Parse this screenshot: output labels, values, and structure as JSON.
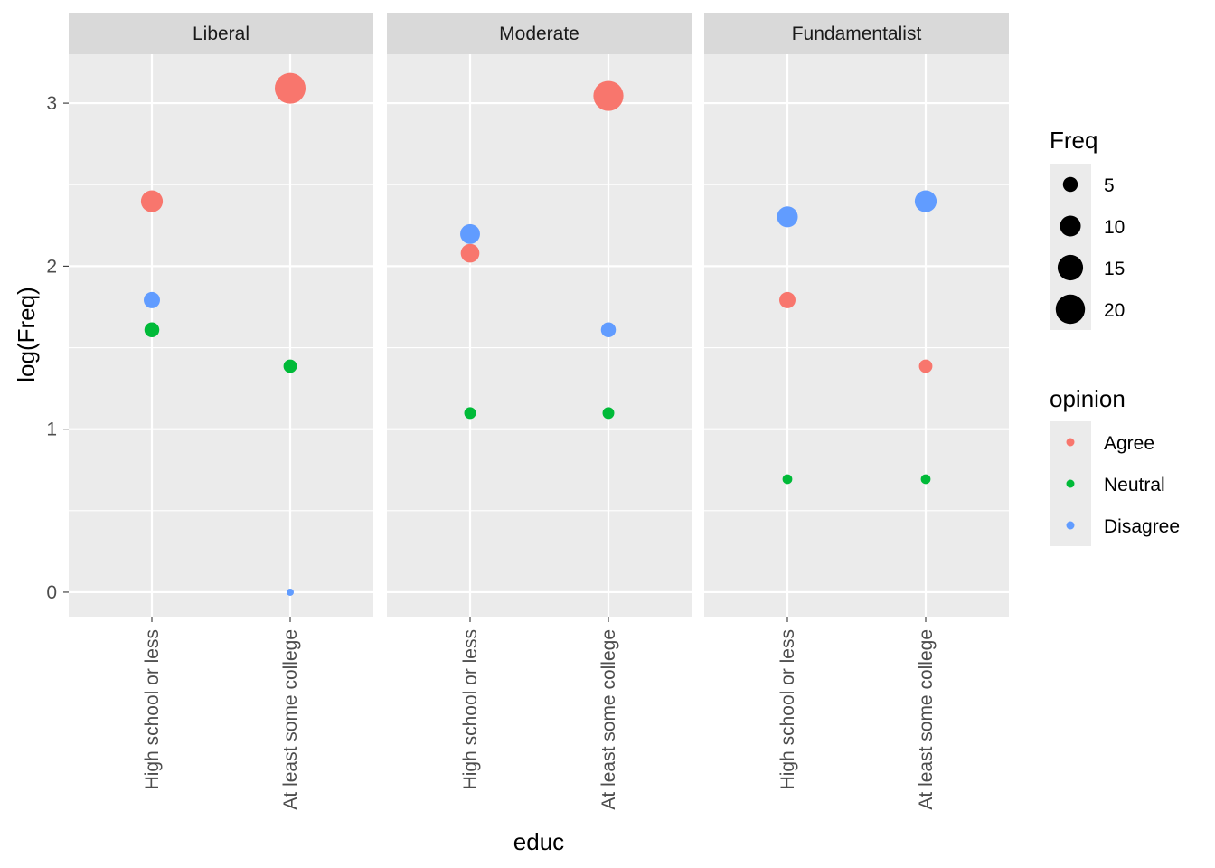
{
  "chart_data": {
    "type": "scatter",
    "facet_by": "religion",
    "panels": [
      "Liberal",
      "Moderate",
      "Fundamentalist"
    ],
    "categories": [
      "High school or less",
      "At least some college"
    ],
    "xlabel": "educ",
    "ylabel": "log(Freq)",
    "ylim": [
      -0.15,
      3.3
    ],
    "yticks": [
      0,
      1,
      2,
      3
    ],
    "grid": true,
    "size_legend": {
      "title": "Freq",
      "breaks": [
        5,
        10,
        15,
        20
      ],
      "labels": [
        "5",
        "10",
        "15",
        "20"
      ]
    },
    "color_legend": {
      "title": "opinion",
      "entries": [
        {
          "name": "Agree",
          "color": "#F8766D"
        },
        {
          "name": "Neutral",
          "color": "#00BA38"
        },
        {
          "name": "Disagree",
          "color": "#619CFF"
        }
      ]
    },
    "legend_position": "right",
    "points": [
      {
        "panel": "Liberal",
        "educ": "High school or less",
        "opinion": "Agree",
        "freq": 11
      },
      {
        "panel": "Liberal",
        "educ": "High school or less",
        "opinion": "Neutral",
        "freq": 5
      },
      {
        "panel": "Liberal",
        "educ": "High school or less",
        "opinion": "Disagree",
        "freq": 6
      },
      {
        "panel": "Liberal",
        "educ": "At least some college",
        "opinion": "Agree",
        "freq": 22
      },
      {
        "panel": "Liberal",
        "educ": "At least some college",
        "opinion": "Neutral",
        "freq": 4
      },
      {
        "panel": "Liberal",
        "educ": "At least some college",
        "opinion": "Disagree",
        "freq": 1
      },
      {
        "panel": "Moderate",
        "educ": "High school or less",
        "opinion": "Agree",
        "freq": 8
      },
      {
        "panel": "Moderate",
        "educ": "High school or less",
        "opinion": "Neutral",
        "freq": 3
      },
      {
        "panel": "Moderate",
        "educ": "High school or less",
        "opinion": "Disagree",
        "freq": 9
      },
      {
        "panel": "Moderate",
        "educ": "At least some college",
        "opinion": "Agree",
        "freq": 21
      },
      {
        "panel": "Moderate",
        "educ": "At least some college",
        "opinion": "Neutral",
        "freq": 3
      },
      {
        "panel": "Moderate",
        "educ": "At least some college",
        "opinion": "Disagree",
        "freq": 5
      },
      {
        "panel": "Fundamentalist",
        "educ": "High school or less",
        "opinion": "Agree",
        "freq": 6
      },
      {
        "panel": "Fundamentalist",
        "educ": "High school or less",
        "opinion": "Neutral",
        "freq": 2
      },
      {
        "panel": "Fundamentalist",
        "educ": "High school or less",
        "opinion": "Disagree",
        "freq": 10
      },
      {
        "panel": "Fundamentalist",
        "educ": "At least some college",
        "opinion": "Agree",
        "freq": 4
      },
      {
        "panel": "Fundamentalist",
        "educ": "At least some college",
        "opinion": "Neutral",
        "freq": 2
      },
      {
        "panel": "Fundamentalist",
        "educ": "At least some college",
        "opinion": "Disagree",
        "freq": 11
      }
    ]
  }
}
